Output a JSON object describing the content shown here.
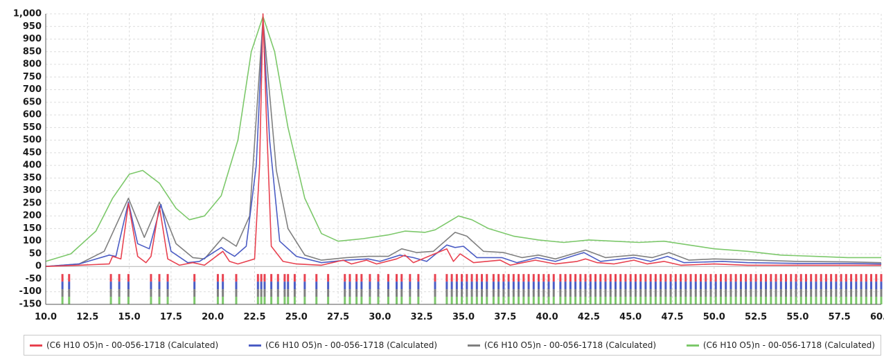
{
  "chart_data": {
    "type": "line",
    "title": "",
    "xlabel": "",
    "ylabel": "",
    "xlim": [
      10.0,
      60.0
    ],
    "ylim": [
      -150,
      1000
    ],
    "grid": true,
    "legend_position": "bottom",
    "xticks": [
      "10.0",
      "12.5",
      "15.0",
      "17.5",
      "20.0",
      "22.5",
      "25.0",
      "27.5",
      "30.0",
      "32.5",
      "35.0",
      "37.5",
      "40.0",
      "42.5",
      "45.0",
      "47.5",
      "50.0",
      "52.5",
      "55.0",
      "57.5",
      "60.0"
    ],
    "yticks": [
      "1,000",
      "950",
      "900",
      "850",
      "800",
      "750",
      "700",
      "650",
      "600",
      "550",
      "500",
      "450",
      "400",
      "350",
      "300",
      "250",
      "200",
      "150",
      "100",
      "50",
      "0",
      "-50",
      "-100",
      "-150"
    ],
    "series": [
      {
        "name": "(C6 H10 O5)n - 00-056-1718 (Calculated)",
        "color": "#e8414f",
        "x": [
          10.0,
          12.0,
          13.8,
          14.0,
          14.5,
          14.95,
          15.5,
          16.0,
          16.3,
          16.8,
          17.3,
          18.0,
          18.8,
          19.5,
          20.3,
          20.6,
          21.0,
          21.5,
          22.5,
          22.8,
          23.0,
          23.2,
          23.5,
          24.2,
          25.0,
          26.5,
          27.8,
          28.3,
          29.2,
          29.8,
          31.0,
          31.5,
          32.0,
          34.0,
          34.4,
          34.8,
          35.6,
          37.2,
          37.8,
          39.3,
          40.5,
          41.8,
          42.3,
          43.0,
          44.0,
          45.2,
          46.0,
          47.0,
          48.0,
          50.0,
          52.0,
          55.0,
          58.0,
          60.0
        ],
        "y": [
          0,
          5,
          10,
          40,
          30,
          250,
          40,
          15,
          40,
          240,
          30,
          5,
          15,
          5,
          45,
          60,
          20,
          10,
          30,
          400,
          1000,
          600,
          80,
          20,
          10,
          5,
          25,
          10,
          25,
          10,
          30,
          45,
          15,
          70,
          20,
          50,
          15,
          25,
          5,
          25,
          10,
          20,
          30,
          15,
          10,
          25,
          10,
          20,
          5,
          10,
          5,
          5,
          5,
          5
        ]
      },
      {
        "name": "(C6 H10 O5)n - 00-056-1718 (Calculated)",
        "color": "#4b5cc4",
        "x": [
          10.0,
          12.0,
          13.8,
          14.2,
          14.95,
          15.5,
          16.2,
          16.9,
          17.5,
          18.5,
          19.2,
          20.5,
          20.8,
          21.3,
          22.0,
          22.6,
          23.0,
          23.4,
          24.0,
          25.0,
          26.5,
          28.0,
          29.3,
          30.0,
          31.2,
          32.0,
          32.8,
          34.0,
          34.5,
          35.0,
          35.8,
          37.3,
          38.2,
          39.4,
          40.5,
          42.2,
          43.2,
          45.2,
          46.2,
          47.2,
          48.2,
          50.5,
          52.0,
          55.0,
          58.0,
          60.0
        ],
        "y": [
          0,
          10,
          45,
          40,
          255,
          90,
          70,
          245,
          60,
          15,
          20,
          75,
          60,
          40,
          80,
          400,
          970,
          500,
          100,
          40,
          15,
          25,
          30,
          20,
          45,
          35,
          20,
          85,
          75,
          80,
          35,
          35,
          15,
          35,
          20,
          55,
          20,
          35,
          20,
          40,
          15,
          20,
          15,
          12,
          12,
          10
        ]
      },
      {
        "name": "(C6 H10 O5)n - 00-056-1718 (Calculated)",
        "color": "#7f7f7f",
        "x": [
          10.0,
          12.0,
          13.5,
          14.95,
          15.9,
          16.8,
          17.8,
          18.8,
          19.5,
          20.6,
          21.4,
          22.2,
          23.0,
          23.8,
          24.5,
          25.5,
          26.5,
          28.0,
          29.3,
          30.5,
          31.3,
          32.2,
          33.2,
          34.5,
          35.2,
          36.2,
          37.4,
          38.5,
          39.5,
          40.5,
          42.3,
          43.5,
          45.2,
          46.3,
          47.3,
          48.5,
          50.0,
          52.5,
          55.0,
          58.0,
          60.0
        ],
        "y": [
          0,
          10,
          60,
          270,
          115,
          255,
          90,
          35,
          30,
          115,
          80,
          200,
          980,
          380,
          150,
          45,
          25,
          35,
          40,
          40,
          70,
          55,
          60,
          135,
          120,
          60,
          55,
          35,
          45,
          30,
          65,
          35,
          45,
          35,
          55,
          25,
          30,
          25,
          20,
          18,
          15
        ]
      },
      {
        "name": "(C6 H10 O5)n - 00-056-1718 (Calculated)",
        "color": "#7cc86a",
        "x": [
          10.0,
          11.5,
          13.0,
          14.0,
          15.0,
          15.8,
          16.8,
          17.8,
          18.6,
          19.5,
          20.5,
          21.5,
          22.3,
          23.0,
          23.7,
          24.5,
          25.5,
          26.5,
          27.5,
          29.0,
          30.5,
          31.5,
          32.7,
          33.3,
          34.7,
          35.5,
          36.5,
          38.0,
          39.5,
          41.0,
          42.5,
          44.0,
          45.5,
          47.0,
          48.5,
          50.0,
          52.0,
          54.0,
          56.0,
          58.0,
          60.0
        ],
        "y": [
          20,
          50,
          140,
          270,
          365,
          380,
          330,
          230,
          185,
          200,
          280,
          500,
          850,
          990,
          850,
          550,
          270,
          130,
          100,
          110,
          125,
          140,
          135,
          145,
          200,
          185,
          150,
          120,
          105,
          95,
          105,
          100,
          95,
          100,
          85,
          70,
          60,
          45,
          40,
          35,
          35
        ]
      }
    ],
    "reference_peaks_2theta": [
      11.0,
      11.4,
      13.9,
      14.4,
      14.95,
      16.3,
      16.8,
      17.3,
      18.9,
      20.3,
      20.6,
      21.4,
      22.7,
      22.9,
      23.1,
      23.5,
      23.9,
      24.3,
      24.5,
      24.9,
      25.5,
      26.2,
      26.9,
      27.9,
      28.2,
      28.6,
      28.9,
      29.4,
      29.9,
      30.5,
      31.0,
      31.3,
      31.8,
      32.3,
      33.3,
      34.0,
      34.3,
      34.6,
      34.9,
      35.2,
      35.5,
      35.8,
      36.1,
      36.4,
      36.8,
      37.1,
      37.4,
      37.7,
      38.0,
      38.3,
      38.6,
      38.9,
      39.2,
      39.5,
      39.8,
      40.1,
      40.4,
      40.8,
      41.1,
      41.4,
      41.7,
      42.0,
      42.3,
      42.6,
      42.9,
      43.2,
      43.5,
      43.8,
      44.1,
      44.4,
      44.7,
      45.0,
      45.3,
      45.6,
      45.9,
      46.2,
      46.5,
      46.8,
      47.1,
      47.4,
      47.7,
      48.0,
      48.3,
      48.6,
      48.9,
      49.2,
      49.5,
      49.8,
      50.1,
      50.4,
      50.7,
      51.0,
      51.3,
      51.6,
      51.9,
      52.2,
      52.5,
      52.8,
      53.1,
      53.4,
      53.7,
      54.0,
      54.3,
      54.6,
      54.9,
      55.2,
      55.5,
      55.8,
      56.1,
      56.4,
      56.7,
      57.0,
      57.3,
      57.6,
      57.9,
      58.2,
      58.5,
      58.8,
      59.1,
      59.4,
      59.7,
      60.0
    ]
  },
  "legend": {
    "items": [
      {
        "label": "(C6 H10 O5)n - 00-056-1718 (Calculated)",
        "color": "#e8414f"
      },
      {
        "label": "(C6 H10 O5)n - 00-056-1718 (Calculated)",
        "color": "#4b5cc4"
      },
      {
        "label": "(C6 H10 O5)n - 00-056-1718 (Calculated)",
        "color": "#7f7f7f"
      },
      {
        "label": "(C6 H10 O5)n - 00-056-1718 (Calculated)",
        "color": "#7cc86a"
      }
    ]
  }
}
